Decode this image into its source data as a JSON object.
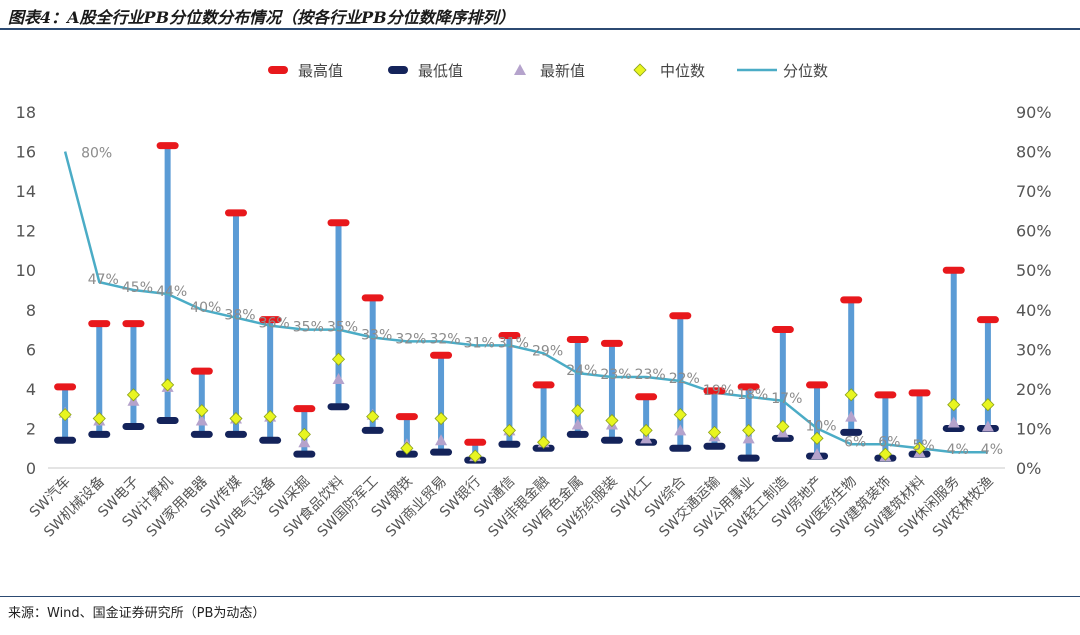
{
  "title": "图表4：A股全行业PB分位数分布情况（按各行业PB分位数降序排列）",
  "source": "来源：Wind、国金证券研究所（PB为动态）",
  "colors": {
    "max": "#e8181c",
    "min": "#14235a",
    "latest": "#b5a3cc",
    "median": "#e8f520",
    "median_border": "#8aa01a",
    "percentile_line": "#4bacc6",
    "range_bar": "#5b9bd5"
  },
  "chart_data": {
    "type": "line",
    "legend": [
      "最高值",
      "最低值",
      "最新值",
      "中位数",
      "分位数"
    ],
    "legend_position": "top",
    "categories": [
      "SW汽车",
      "SW机械设备",
      "SW电子",
      "SW计算机",
      "SW家用电器",
      "SW传媒",
      "SW电气设备",
      "SW采掘",
      "SW食品饮料",
      "SW国防军工",
      "SW钢铁",
      "SW商业贸易",
      "SW银行",
      "SW通信",
      "SW非银金融",
      "SW有色金属",
      "SW纺织服装",
      "SW化工",
      "SW综合",
      "SW交通运输",
      "SW公用事业",
      "SW轻工制造",
      "SW房地产",
      "SW医药生物",
      "SW建筑装饰",
      "SW建筑材料",
      "SW休闲服务",
      "SW农林牧渔"
    ],
    "series": [
      {
        "name": "最高值",
        "values": [
          4.1,
          7.3,
          7.3,
          16.3,
          4.9,
          12.9,
          7.5,
          3.0,
          12.4,
          8.6,
          2.6,
          5.7,
          1.3,
          6.7,
          4.2,
          6.5,
          6.3,
          3.6,
          7.7,
          3.9,
          4.1,
          7.0,
          4.2,
          8.5,
          3.7,
          3.8,
          10.0,
          7.5
        ]
      },
      {
        "name": "最低值",
        "values": [
          1.4,
          1.7,
          2.1,
          2.4,
          1.7,
          1.7,
          1.4,
          0.7,
          3.1,
          1.9,
          0.7,
          0.8,
          0.4,
          1.2,
          1.0,
          1.7,
          1.4,
          1.3,
          1.0,
          1.1,
          0.5,
          1.5,
          0.6,
          1.8,
          0.5,
          0.7,
          2.0,
          2.0
        ]
      },
      {
        "name": "最新值",
        "values": [
          2.8,
          2.4,
          3.4,
          4.1,
          2.4,
          2.5,
          2.6,
          1.3,
          4.5,
          2.7,
          1.2,
          1.4,
          0.6,
          1.9,
          1.3,
          2.2,
          2.2,
          1.5,
          1.9,
          1.6,
          1.5,
          1.8,
          0.7,
          2.6,
          0.6,
          0.8,
          2.3,
          2.1
        ]
      },
      {
        "name": "中位数",
        "values": [
          2.7,
          2.5,
          3.7,
          4.2,
          2.9,
          2.5,
          2.6,
          1.7,
          5.5,
          2.6,
          1.0,
          2.5,
          0.6,
          1.9,
          1.3,
          2.9,
          2.4,
          1.9,
          2.7,
          1.8,
          1.9,
          2.1,
          1.5,
          3.7,
          0.7,
          1.0,
          3.2,
          3.2
        ]
      },
      {
        "name": "分位数",
        "axis": "right",
        "values": [
          80,
          47,
          45,
          44,
          40,
          38,
          36,
          35,
          35,
          33,
          32,
          32,
          31,
          31,
          29,
          24,
          23,
          23,
          22,
          19,
          18,
          17,
          10,
          6,
          6,
          5,
          4,
          4
        ]
      }
    ],
    "percentile_labels": [
      "80%",
      "47%",
      "45%",
      "44%",
      "40%",
      "38%",
      "36%",
      "35%",
      "35%",
      "33%",
      "32%",
      "32%",
      "31%",
      "31%",
      "29%",
      "24%",
      "23%",
      "23%",
      "22%",
      "19%",
      "18%",
      "17%",
      "10%",
      "6%",
      "6%",
      "5%",
      "4%",
      "4%"
    ],
    "left_ticks": [
      "0",
      "2",
      "4",
      "6",
      "8",
      "10",
      "12",
      "14",
      "16",
      "18"
    ],
    "right_ticks": [
      "0%",
      "10%",
      "20%",
      "30%",
      "40%",
      "50%",
      "60%",
      "70%",
      "80%",
      "90%"
    ],
    "ylim": [
      0,
      18
    ],
    "ylim_right": [
      0,
      90
    ]
  }
}
